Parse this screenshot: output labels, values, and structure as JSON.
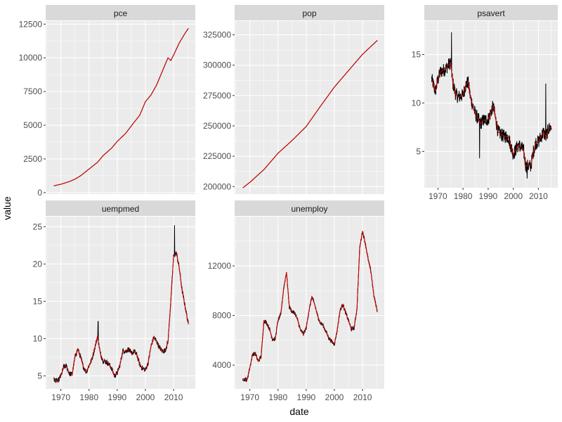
{
  "chart_data": {
    "type": "line",
    "x_label": "date",
    "y_label": "value",
    "x_ticks": [
      1970,
      1980,
      1990,
      2000,
      2010
    ],
    "x_range": [
      1967,
      2015.3
    ],
    "x_pad": 2.4,
    "series_styles": [
      {
        "name": "value",
        "color": "#000000"
      },
      {
        "name": "smoothed",
        "color": "#cc0000"
      }
    ],
    "panels": [
      {
        "name": "pce",
        "ylim": [
          -111,
          12725
        ],
        "y_ticks": [
          0,
          2500,
          5000,
          7500,
          10000,
          12500
        ],
        "y_tick_labels": [
          "0",
          "2500",
          "5000",
          "7500",
          "10000",
          "12500"
        ],
        "noise": 0,
        "points": [
          [
            1967.5,
            507
          ],
          [
            1970,
            620
          ],
          [
            1973,
            820
          ],
          [
            1975,
            1000
          ],
          [
            1977,
            1250
          ],
          [
            1980,
            1750
          ],
          [
            1983,
            2250
          ],
          [
            1985,
            2750
          ],
          [
            1988,
            3300
          ],
          [
            1990,
            3800
          ],
          [
            1993,
            4400
          ],
          [
            1995,
            4950
          ],
          [
            1998,
            5750
          ],
          [
            2000,
            6750
          ],
          [
            2002,
            7250
          ],
          [
            2004,
            8000
          ],
          [
            2006,
            9000
          ],
          [
            2008,
            10000
          ],
          [
            2009,
            9800
          ],
          [
            2010,
            10200
          ],
          [
            2012,
            11100
          ],
          [
            2014,
            11800
          ],
          [
            2015.3,
            12200
          ]
        ]
      },
      {
        "name": "pop",
        "ylim": [
          193800,
          336300
        ],
        "y_ticks": [
          200000,
          225000,
          250000,
          275000,
          300000,
          325000
        ],
        "y_tick_labels": [
          "200000",
          "225000",
          "250000",
          "275000",
          "300000",
          "325000"
        ],
        "noise": 0,
        "points": [
          [
            1967.5,
            199000
          ],
          [
            1970,
            203500
          ],
          [
            1975,
            214000
          ],
          [
            1980,
            227500
          ],
          [
            1985,
            238000
          ],
          [
            1990,
            249500
          ],
          [
            1995,
            266000
          ],
          [
            2000,
            282000
          ],
          [
            2005,
            295500
          ],
          [
            2010,
            309000
          ],
          [
            2015.3,
            320500
          ]
        ]
      },
      {
        "name": "psavert",
        "ylim": [
          1.25,
          18.45
        ],
        "y_ticks": [
          5,
          10,
          15
        ],
        "y_tick_labels": [
          "5",
          "10",
          "15"
        ],
        "noise": 0.7,
        "spikes": [
          [
            1975.4,
            17.3
          ],
          [
            1986.6,
            4.3
          ],
          [
            2005.5,
            2.2
          ],
          [
            2012.9,
            12.0
          ]
        ],
        "points": [
          [
            1967.5,
            12.5
          ],
          [
            1969,
            11.2
          ],
          [
            1970,
            12.4
          ],
          [
            1971,
            13.2
          ],
          [
            1973,
            13.5
          ],
          [
            1975,
            14.2
          ],
          [
            1976,
            12.0
          ],
          [
            1977,
            11.0
          ],
          [
            1978,
            10.6
          ],
          [
            1980,
            10.8
          ],
          [
            1981,
            11.8
          ],
          [
            1982,
            12.2
          ],
          [
            1983,
            10.5
          ],
          [
            1985,
            8.8
          ],
          [
            1987,
            7.9
          ],
          [
            1988,
            8.2
          ],
          [
            1990,
            8.3
          ],
          [
            1992,
            9.7
          ],
          [
            1993,
            8.3
          ],
          [
            1994,
            7.0
          ],
          [
            1996,
            6.6
          ],
          [
            1998,
            6.5
          ],
          [
            2000,
            4.7
          ],
          [
            2002,
            5.7
          ],
          [
            2004,
            5.2
          ],
          [
            2005,
            3.5
          ],
          [
            2007,
            3.5
          ],
          [
            2008,
            5.0
          ],
          [
            2009,
            5.9
          ],
          [
            2010,
            6.0
          ],
          [
            2012,
            7.0
          ],
          [
            2013,
            6.5
          ],
          [
            2014,
            7.3
          ],
          [
            2015.3,
            7.6
          ]
        ]
      },
      {
        "name": "uempmed",
        "ylim": [
          3.25,
          26.35
        ],
        "y_ticks": [
          5,
          10,
          15,
          20,
          25
        ],
        "y_tick_labels": [
          "5",
          "10",
          "15",
          "20",
          "25"
        ],
        "noise": 0.35,
        "spikes": [
          [
            1983.2,
            12.3
          ],
          [
            2010.3,
            25.2
          ]
        ],
        "points": [
          [
            1967.5,
            4.5
          ],
          [
            1969,
            4.3
          ],
          [
            1970,
            5.0
          ],
          [
            1971,
            6.2
          ],
          [
            1972,
            6.3
          ],
          [
            1973,
            5.3
          ],
          [
            1974,
            5.2
          ],
          [
            1975,
            7.5
          ],
          [
            1976,
            8.6
          ],
          [
            1977,
            7.5
          ],
          [
            1978,
            6.2
          ],
          [
            1979,
            5.5
          ],
          [
            1980,
            6.4
          ],
          [
            1981,
            7.2
          ],
          [
            1982,
            8.7
          ],
          [
            1983,
            10.3
          ],
          [
            1984,
            8.0
          ],
          [
            1985,
            7.0
          ],
          [
            1986,
            6.9
          ],
          [
            1987,
            6.6
          ],
          [
            1988,
            6.0
          ],
          [
            1989,
            5.0
          ],
          [
            1990,
            5.4
          ],
          [
            1991,
            6.5
          ],
          [
            1992,
            8.4
          ],
          [
            1993,
            8.3
          ],
          [
            1994,
            8.6
          ],
          [
            1995,
            8.0
          ],
          [
            1996,
            8.3
          ],
          [
            1997,
            7.8
          ],
          [
            1998,
            6.5
          ],
          [
            1999,
            6.0
          ],
          [
            2000,
            5.8
          ],
          [
            2001,
            6.8
          ],
          [
            2002,
            9.0
          ],
          [
            2003,
            10.2
          ],
          [
            2004,
            9.6
          ],
          [
            2005,
            8.8
          ],
          [
            2006,
            8.3
          ],
          [
            2007,
            8.4
          ],
          [
            2008,
            9.5
          ],
          [
            2009,
            15.0
          ],
          [
            2010,
            21.0
          ],
          [
            2011,
            21.5
          ],
          [
            2012,
            19.5
          ],
          [
            2013,
            16.5
          ],
          [
            2014,
            14.5
          ],
          [
            2015.3,
            11.8
          ]
        ]
      },
      {
        "name": "unemploy",
        "ylim": [
          2078,
          15970
        ],
        "y_ticks": [
          4000,
          8000,
          12000
        ],
        "y_tick_labels": [
          "4000",
          "8000",
          "12000"
        ],
        "noise": 170,
        "points": [
          [
            1967.5,
            2900
          ],
          [
            1969,
            2800
          ],
          [
            1970,
            3800
          ],
          [
            1971,
            4900
          ],
          [
            1972,
            4900
          ],
          [
            1973,
            4300
          ],
          [
            1974,
            4700
          ],
          [
            1975,
            7600
          ],
          [
            1976,
            7400
          ],
          [
            1977,
            6900
          ],
          [
            1978,
            6100
          ],
          [
            1979,
            6100
          ],
          [
            1980,
            7600
          ],
          [
            1981,
            8100
          ],
          [
            1982,
            10200
          ],
          [
            1983,
            11500
          ],
          [
            1984,
            8700
          ],
          [
            1985,
            8300
          ],
          [
            1986,
            8200
          ],
          [
            1987,
            7600
          ],
          [
            1988,
            6800
          ],
          [
            1989,
            6500
          ],
          [
            1990,
            7000
          ],
          [
            1991,
            8400
          ],
          [
            1992,
            9500
          ],
          [
            1993,
            8900
          ],
          [
            1994,
            8000
          ],
          [
            1995,
            7400
          ],
          [
            1996,
            7200
          ],
          [
            1997,
            6700
          ],
          [
            1998,
            6200
          ],
          [
            1999,
            5900
          ],
          [
            2000,
            5700
          ],
          [
            2001,
            6800
          ],
          [
            2002,
            8400
          ],
          [
            2003,
            8900
          ],
          [
            2004,
            8200
          ],
          [
            2005,
            7600
          ],
          [
            2006,
            6900
          ],
          [
            2007,
            7000
          ],
          [
            2008,
            8500
          ],
          [
            2009,
            13500
          ],
          [
            2010,
            14800
          ],
          [
            2011,
            13800
          ],
          [
            2012,
            12500
          ],
          [
            2013,
            11500
          ],
          [
            2014,
            9600
          ],
          [
            2015.3,
            8300
          ]
        ]
      }
    ]
  }
}
